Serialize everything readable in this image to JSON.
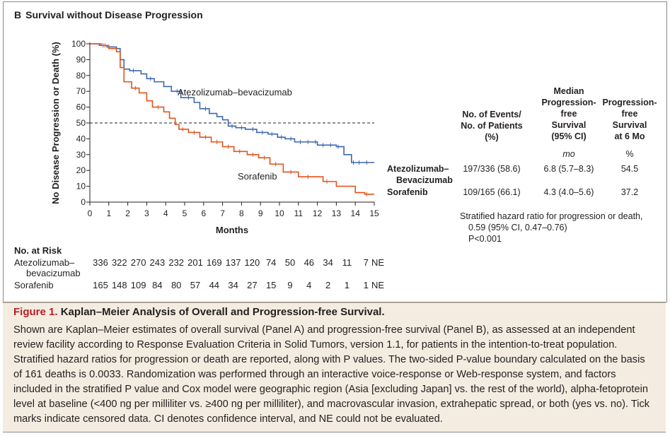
{
  "panel": {
    "letter": "B",
    "title": "Survival without Disease Progression"
  },
  "chart_data": {
    "type": "line",
    "title": "Survival without Disease Progression",
    "xlabel": "Months",
    "ylabel": "No Disease Progression or Death (%)",
    "xlim": [
      0,
      15
    ],
    "ylim": [
      0,
      100
    ],
    "xticks": [
      0,
      1,
      2,
      3,
      4,
      5,
      6,
      7,
      8,
      9,
      10,
      11,
      12,
      13,
      14,
      15
    ],
    "yticks": [
      0,
      10,
      20,
      30,
      40,
      50,
      60,
      70,
      80,
      90,
      100
    ],
    "reference_line": {
      "y": 50,
      "style": "dashed"
    },
    "series": [
      {
        "name": "Atezolizumab–bevacizumab",
        "label": "Atezolizumab–bevacizumab",
        "color": "#3d67b1",
        "x": [
          0,
          0.5,
          0.9,
          1.4,
          1.6,
          1.8,
          2.1,
          2.7,
          3.0,
          3.4,
          3.9,
          4.3,
          4.8,
          5.5,
          5.8,
          6.3,
          6.7,
          7.0,
          7.3,
          7.7,
          8.2,
          8.8,
          9.4,
          9.9,
          10.3,
          10.8,
          12.0,
          13.0,
          13.4,
          13.8,
          14.5,
          15.0
        ],
        "y": [
          100,
          99,
          98,
          97,
          90,
          84,
          83,
          81,
          78,
          76,
          73,
          70,
          66,
          63,
          59,
          56,
          54,
          52,
          48,
          47,
          46,
          44,
          43,
          41,
          40,
          38,
          36,
          35,
          30,
          25,
          25,
          25
        ],
        "censor_x": [
          0.7,
          2.3,
          3.2,
          4.6,
          5.2,
          6.1,
          7.5,
          8.0,
          8.6,
          9.1,
          9.6,
          10.1,
          10.6,
          11.1,
          11.5,
          11.9,
          12.3,
          12.7,
          13.1,
          13.9,
          14.2,
          14.6
        ]
      },
      {
        "name": "Sorafenib",
        "label": "Sorafenib",
        "color": "#e2531c",
        "x": [
          0,
          0.6,
          1.0,
          1.4,
          1.6,
          1.8,
          2.2,
          2.6,
          3.0,
          3.3,
          3.9,
          4.2,
          4.5,
          4.7,
          5.2,
          5.8,
          6.4,
          7.0,
          7.6,
          8.3,
          8.9,
          9.5,
          10.2,
          11.0,
          12.3,
          13.0,
          14.0,
          14.5,
          15.0
        ],
        "y": [
          100,
          99,
          97,
          95,
          85,
          76,
          72,
          69,
          64,
          60,
          57,
          53,
          49,
          46,
          44,
          41,
          38,
          35,
          32,
          30,
          28,
          24,
          19,
          16,
          13,
          10,
          6,
          5,
          5
        ],
        "censor_x": [
          0.8,
          2.4,
          3.6,
          4.9,
          5.5,
          6.1,
          6.7,
          7.3,
          7.9,
          8.6,
          9.2,
          9.8,
          10.6,
          11.5,
          12.5,
          14.6
        ]
      }
    ]
  },
  "stats": {
    "headers": {
      "events": [
        "No. of Events/",
        "No. of Patients",
        "(%)"
      ],
      "median": [
        "Median",
        "Progression-",
        "free",
        "Survival",
        "(95% CI)"
      ],
      "pfs6": [
        "Progression-",
        "free",
        "Survival",
        "at 6 Mo"
      ]
    },
    "units": {
      "median": "mo",
      "pfs6": "%"
    },
    "rows": [
      {
        "group": [
          "Atezolizumab–",
          "Bevacizumab"
        ],
        "events": "197/336 (58.6)",
        "median": "6.8 (5.7–8.3)",
        "pfs6": "54.5"
      },
      {
        "group": [
          "Sorafenib"
        ],
        "events": "109/165 (66.1)",
        "median": "4.3 (4.0–5.6)",
        "pfs6": "37.2"
      }
    ],
    "hazard": [
      "Stratified hazard ratio for progression or death,",
      "0.59 (95% CI, 0.47–0.76)",
      "P<0.001"
    ]
  },
  "risk_table": {
    "title": "No. at Risk",
    "rows": [
      {
        "label": [
          "Atezolizumab–",
          "bevacizumab"
        ],
        "values": [
          "336",
          "322",
          "270",
          "243",
          "232",
          "201",
          "169",
          "137",
          "120",
          "74",
          "50",
          "46",
          "34",
          "11",
          "7",
          "NE"
        ]
      },
      {
        "label": [
          "Sorafenib"
        ],
        "values": [
          "165",
          "148",
          "109",
          "84",
          "80",
          "57",
          "44",
          "34",
          "27",
          "15",
          "9",
          "4",
          "2",
          "1",
          "1",
          "NE"
        ]
      }
    ]
  },
  "caption": {
    "figure_num": "Figure 1.",
    "title": "Kaplan–Meier Analysis of Overall and Progression-free Survival.",
    "body": "Shown are Kaplan–Meier estimates of overall survival (Panel A) and progression-free survival (Panel B), as assessed at an independent review facility according to Response Evaluation Criteria in Solid Tumors, version 1.1, for patients in the intention-to-treat population. Stratified hazard ratios for progression or death are reported, along with P values. The two-sided P-value boundary calculated on the basis of 161 deaths is 0.0033. Randomization was performed through an interactive voice-response or Web-response system, and factors included in the stratified P value and Cox model were geographic region (Asia [excluding Japan] vs. the rest of the world), alpha-fetoprotein level at baseline (<400 ng per milliliter vs. ≥400 ng per milliliter), and macrovascular invasion, extrahepatic spread, or both (yes vs. no). Tick marks indicate censored data. CI denotes confidence interval, and NE could not be evaluated."
  }
}
